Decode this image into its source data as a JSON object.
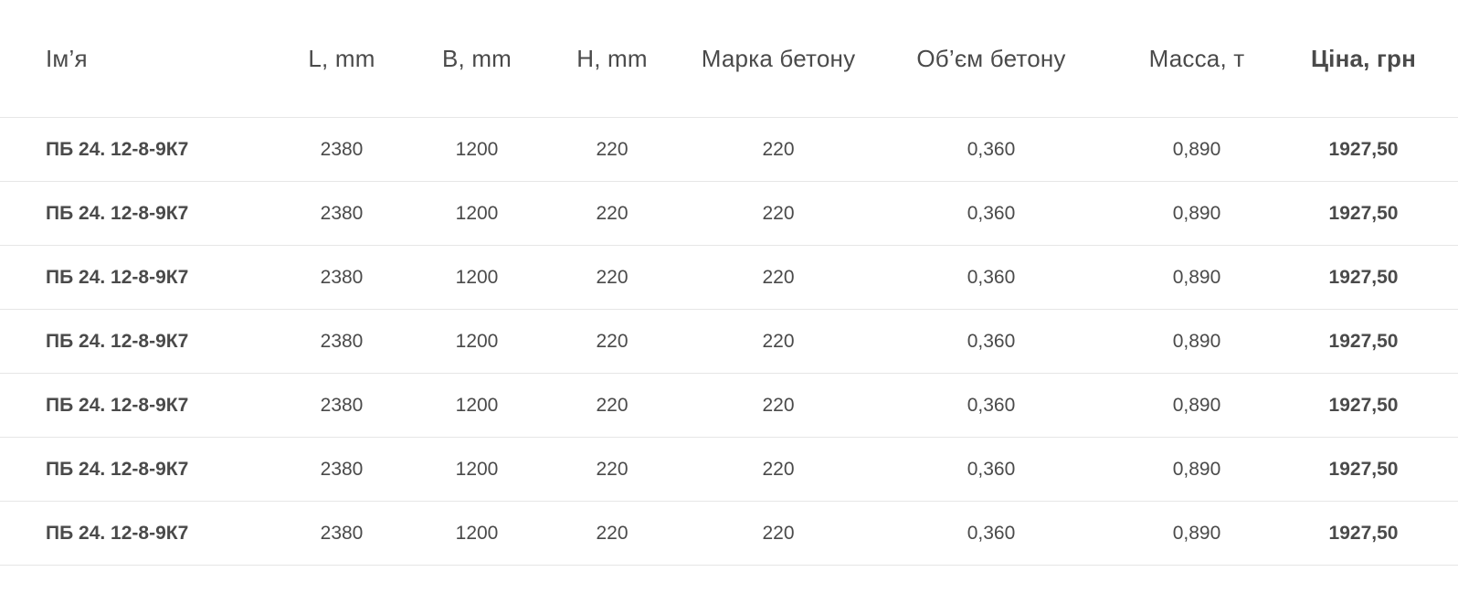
{
  "table": {
    "headers": {
      "name": "Ім’я",
      "l": "L, mm",
      "b": "B, mm",
      "h": "H, mm",
      "grade": "Марка бетону",
      "volume": "Об’єм бетону",
      "mass": "Масса, т",
      "price": "Ціна, грн"
    },
    "rows": [
      {
        "name": "ПБ 24. 12-8-9К7",
        "l": "2380",
        "b": "1200",
        "h": "220",
        "grade": "220",
        "volume": "0,360",
        "mass": "0,890",
        "price": "1927,50"
      },
      {
        "name": "ПБ 24. 12-8-9К7",
        "l": "2380",
        "b": "1200",
        "h": "220",
        "grade": "220",
        "volume": "0,360",
        "mass": "0,890",
        "price": "1927,50"
      },
      {
        "name": "ПБ 24. 12-8-9К7",
        "l": "2380",
        "b": "1200",
        "h": "220",
        "grade": "220",
        "volume": "0,360",
        "mass": "0,890",
        "price": "1927,50"
      },
      {
        "name": "ПБ 24. 12-8-9К7",
        "l": "2380",
        "b": "1200",
        "h": "220",
        "grade": "220",
        "volume": "0,360",
        "mass": "0,890",
        "price": "1927,50"
      },
      {
        "name": "ПБ 24. 12-8-9К7",
        "l": "2380",
        "b": "1200",
        "h": "220",
        "grade": "220",
        "volume": "0,360",
        "mass": "0,890",
        "price": "1927,50"
      },
      {
        "name": "ПБ 24. 12-8-9К7",
        "l": "2380",
        "b": "1200",
        "h": "220",
        "grade": "220",
        "volume": "0,360",
        "mass": "0,890",
        "price": "1927,50"
      },
      {
        "name": "ПБ 24. 12-8-9К7",
        "l": "2380",
        "b": "1200",
        "h": "220",
        "grade": "220",
        "volume": "0,360",
        "mass": "0,890",
        "price": "1927,50"
      }
    ]
  }
}
